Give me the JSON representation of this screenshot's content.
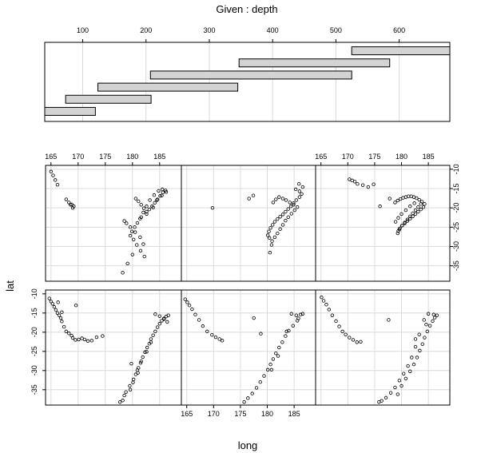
{
  "chart_data": {
    "type": "scatter",
    "title": "Given : depth",
    "xlabel": "long",
    "ylabel": "lat",
    "grid": true,
    "depth_axis": {
      "range": [
        40,
        680
      ],
      "ticks": [
        100,
        200,
        300,
        400,
        500,
        600
      ],
      "intervals": [
        [
          40,
          120
        ],
        [
          73,
          208
        ],
        [
          124,
          345
        ],
        [
          207,
          525
        ],
        [
          347,
          585
        ],
        [
          525,
          680
        ]
      ]
    },
    "x_axis": {
      "range": [
        164,
        189
      ],
      "ticks": [
        165,
        170,
        175,
        180,
        185
      ]
    },
    "y_axis": {
      "range": [
        -39,
        -9
      ],
      "ticks": [
        -10,
        -15,
        -20,
        -25,
        -30,
        -35
      ]
    },
    "panels": [
      {
        "name": "depth-1",
        "row": "bottom",
        "col": 1,
        "x": [
          164.7,
          165.0,
          165.3,
          165.6,
          165.9,
          166.2,
          166.5,
          166.8,
          167.0,
          167.4,
          167.8,
          168.3,
          168.8,
          169.0,
          169.5,
          170.1,
          170.7,
          171.2,
          171.8,
          172.5,
          173.4,
          174.5,
          169.6,
          166.3,
          167.0,
          178.5,
          179.6,
          180.1,
          180.6,
          181.1,
          181.5,
          181.9,
          182.3,
          182.7,
          183.1,
          183.4,
          183.8,
          184.2,
          184.6,
          185.0,
          185.4,
          185.8,
          186.2,
          186.6,
          184.2,
          185.0,
          185.8,
          186.4,
          183.4,
          182.6,
          181.6,
          180.9,
          180.2,
          179.5,
          178.8,
          178.2,
          177.7,
          181.0,
          179.8
        ],
        "y": [
          -11.2,
          -12.0,
          -12.6,
          -13.4,
          -14.2,
          -15.0,
          -15.6,
          -16.3,
          -17.2,
          -18.6,
          -19.8,
          -20.3,
          -20.9,
          -21.5,
          -22.0,
          -21.9,
          -21.6,
          -21.9,
          -22.3,
          -22.2,
          -21.3,
          -21.0,
          -13.0,
          -12.2,
          -14.8,
          -36.5,
          -35.0,
          -33.1,
          -31.0,
          -29.3,
          -28.0,
          -26.5,
          -25.2,
          -24.0,
          -23.0,
          -21.8,
          -20.8,
          -19.8,
          -18.7,
          -17.8,
          -17.0,
          -16.4,
          -15.9,
          -15.6,
          -15.3,
          -15.8,
          -16.6,
          -17.3,
          -22.6,
          -25.1,
          -27.6,
          -29.9,
          -32.3,
          -34.0,
          -35.6,
          -37.8,
          -38.2,
          -30.6,
          -28.2
        ]
      },
      {
        "name": "depth-2",
        "row": "bottom",
        "col": 2,
        "x": [
          164.7,
          165.1,
          165.5,
          166.0,
          166.6,
          167.3,
          168.0,
          168.8,
          169.7,
          170.4,
          171.1,
          171.6,
          177.5,
          178.8,
          184.5,
          185.4,
          186.2,
          185.6,
          184.8,
          184.0,
          183.4,
          182.8,
          182.2,
          181.6,
          181.1,
          180.6,
          180.1,
          179.4,
          178.7,
          178.0,
          177.2,
          176.4,
          175.7,
          183.6,
          185.8,
          186.6,
          182.0,
          180.8
        ],
        "y": [
          -11.4,
          -12.2,
          -13.0,
          -14.0,
          -15.4,
          -16.8,
          -18.4,
          -19.8,
          -20.7,
          -21.3,
          -21.8,
          -22.2,
          -16.3,
          -20.4,
          -15.2,
          -15.6,
          -15.4,
          -17.0,
          -18.3,
          -19.6,
          -21.0,
          -22.6,
          -24.0,
          -25.5,
          -27.0,
          -28.4,
          -29.8,
          -31.4,
          -33.0,
          -34.5,
          -36.0,
          -37.2,
          -38.2,
          -19.8,
          -16.4,
          -15.2,
          -26.2,
          -29.8
        ]
      },
      {
        "name": "depth-3",
        "row": "bottom",
        "col": 3,
        "x": [
          165.1,
          165.5,
          166.0,
          166.5,
          167.1,
          167.8,
          168.4,
          169.0,
          169.6,
          170.3,
          171.0,
          171.7,
          172.4,
          177.6,
          179.3,
          180.0,
          180.8,
          181.6,
          182.3,
          182.9,
          183.4,
          183.9,
          184.3,
          184.8,
          185.3,
          185.8,
          186.2,
          186.6,
          185.0,
          184.2,
          183.3,
          182.6,
          181.9,
          181.2,
          180.4,
          179.6,
          178.8,
          178.0,
          177.1,
          176.3,
          175.8,
          182.6,
          184.6,
          186.0
        ],
        "y": [
          -10.9,
          -11.8,
          -12.8,
          -14.1,
          -15.6,
          -17.1,
          -18.5,
          -19.8,
          -20.6,
          -21.4,
          -22.0,
          -22.6,
          -22.5,
          -16.8,
          -36.2,
          -34.0,
          -32.1,
          -30.2,
          -28.4,
          -26.6,
          -24.8,
          -23.1,
          -21.4,
          -19.8,
          -18.3,
          -17.1,
          -16.2,
          -15.6,
          -15.2,
          -16.8,
          -20.6,
          -23.8,
          -26.6,
          -28.8,
          -30.8,
          -32.6,
          -34.4,
          -35.8,
          -37.1,
          -37.9,
          -38.2,
          -21.8,
          -18.0,
          -15.4
        ]
      },
      {
        "name": "depth-4",
        "row": "top",
        "col": 1,
        "x": [
          165.0,
          165.4,
          165.8,
          166.2,
          167.8,
          168.3,
          168.8,
          169.2,
          169.0,
          168.6,
          180.6,
          181.1,
          181.6,
          182.1,
          182.6,
          183.1,
          183.6,
          184.1,
          184.6,
          185.1,
          185.6,
          186.1,
          185.5,
          184.8,
          184.0,
          183.2,
          182.6,
          182.0,
          181.4,
          180.9,
          180.4,
          179.9,
          179.6,
          180.2,
          180.8,
          181.5,
          182.2,
          182.0,
          181.4,
          180.5,
          179.6,
          178.9,
          178.5,
          181.6,
          182.6,
          183.8,
          184.5,
          185.4,
          186.2,
          178.2,
          179.1,
          180.0
        ],
        "y": [
          -10.6,
          -11.6,
          -12.8,
          -14.0,
          -17.8,
          -18.6,
          -19.1,
          -19.6,
          -20.0,
          -19.2,
          -17.6,
          -18.3,
          -19.2,
          -20.1,
          -21.0,
          -20.4,
          -19.6,
          -18.7,
          -17.8,
          -16.9,
          -16.0,
          -15.5,
          -15.2,
          -15.6,
          -16.7,
          -18.0,
          -19.6,
          -21.2,
          -22.8,
          -23.9,
          -25.0,
          -26.1,
          -27.2,
          -28.2,
          -29.6,
          -31.1,
          -32.6,
          -29.4,
          -27.6,
          -26.3,
          -25.0,
          -24.0,
          -23.4,
          -22.4,
          -21.6,
          -19.9,
          -18.0,
          -16.8,
          -15.9,
          -36.8,
          -34.4,
          -32.1
        ]
      },
      {
        "name": "depth-5",
        "row": "top",
        "col": 2,
        "x": [
          185.3,
          186.0,
          186.4,
          186.0,
          185.4,
          184.9,
          184.4,
          183.9,
          183.4,
          182.9,
          182.4,
          181.9,
          181.4,
          181.0,
          180.6,
          180.3,
          180.1,
          180.4,
          180.9,
          181.4,
          181.9,
          182.4,
          182.9,
          183.4,
          183.9,
          184.5,
          185.1,
          185.6,
          184.9,
          184.2,
          183.5,
          182.9,
          182.2,
          181.6,
          181.1,
          180.8,
          180.5,
          169.8,
          176.6,
          177.4,
          186.6,
          185.9
        ],
        "y": [
          -15.2,
          -15.7,
          -16.4,
          -17.2,
          -18.0,
          -18.8,
          -19.6,
          -20.3,
          -21.0,
          -21.7,
          -22.3,
          -22.9,
          -23.6,
          -24.4,
          -25.2,
          -26.1,
          -27.1,
          -27.8,
          -28.6,
          -27.6,
          -26.6,
          -25.5,
          -24.4,
          -23.3,
          -22.4,
          -21.5,
          -20.6,
          -19.8,
          -19.2,
          -18.6,
          -18.0,
          -17.6,
          -17.2,
          -17.8,
          -18.6,
          -29.6,
          -31.6,
          -20.0,
          -17.6,
          -16.8,
          -14.6,
          -13.8
        ]
      },
      {
        "name": "depth-6",
        "row": "top",
        "col": 3,
        "x": [
          170.3,
          170.8,
          171.3,
          171.8,
          172.8,
          173.8,
          174.8,
          176.0,
          177.8,
          178.8,
          179.3,
          179.8,
          180.3,
          180.8,
          181.3,
          181.8,
          182.3,
          182.8,
          183.3,
          183.8,
          184.3,
          184.1,
          183.6,
          183.1,
          182.6,
          182.1,
          181.6,
          181.1,
          180.6,
          180.1,
          179.7,
          179.4,
          179.3,
          179.6,
          180.1,
          180.6,
          181.1,
          181.6,
          182.1,
          182.6,
          183.1,
          183.6,
          182.4,
          181.6,
          180.8,
          180.0,
          179.4,
          178.9
        ],
        "y": [
          -12.6,
          -12.9,
          -13.2,
          -13.8,
          -14.1,
          -14.6,
          -13.9,
          -19.6,
          -17.6,
          -18.6,
          -18.1,
          -17.7,
          -17.4,
          -17.2,
          -17.0,
          -17.0,
          -17.2,
          -17.5,
          -17.9,
          -18.4,
          -19.0,
          -19.8,
          -20.4,
          -21.0,
          -21.6,
          -22.2,
          -22.8,
          -23.4,
          -24.0,
          -24.6,
          -25.3,
          -26.0,
          -26.6,
          -25.6,
          -24.6,
          -23.8,
          -23.0,
          -22.2,
          -21.4,
          -20.6,
          -19.8,
          -19.0,
          -18.8,
          -19.6,
          -20.6,
          -21.6,
          -22.6,
          -23.6
        ]
      }
    ]
  }
}
